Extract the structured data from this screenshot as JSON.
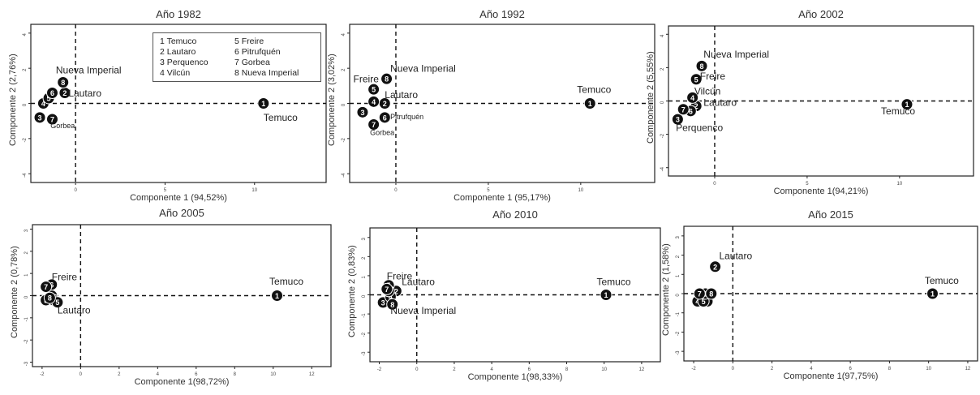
{
  "chart_data": [
    {
      "type": "scatter",
      "title": "Año 1982",
      "xlabel": "Componente 1 (94,52%)",
      "ylabel": "Componente 2 (2,76%)",
      "xlim": [
        -2.5,
        14
      ],
      "ylim": [
        -4.5,
        4.5
      ],
      "xticks": [
        0,
        5,
        10
      ],
      "yticks": [
        -4,
        -2,
        0,
        2,
        4
      ],
      "points": [
        {
          "id": "1",
          "x": 10.5,
          "y": 0.0
        },
        {
          "id": "2",
          "x": -0.6,
          "y": 0.6
        },
        {
          "id": "3",
          "x": -2.0,
          "y": -0.8
        },
        {
          "id": "4",
          "x": -1.8,
          "y": 0.0
        },
        {
          "id": "5",
          "x": -1.5,
          "y": 0.3
        },
        {
          "id": "6",
          "x": -1.3,
          "y": 0.6
        },
        {
          "id": "7",
          "x": -1.3,
          "y": -0.9
        },
        {
          "id": "8",
          "x": -0.7,
          "y": 1.2
        }
      ],
      "labels": [
        {
          "text": "Nueva Imperial",
          "x": -1.1,
          "y": 1.7
        },
        {
          "text": "Lautaro",
          "x": -0.4,
          "y": 0.4
        },
        {
          "text": "Temuco",
          "x": 10.5,
          "y": -1.0
        },
        {
          "text": "Gorbea",
          "x": -1.4,
          "y": -1.4
        }
      ],
      "legend": [
        "1 Temuco",
        "5 Freire",
        "2 Lautaro",
        "6 Pitrufquén",
        "3 Perquenco",
        "7 Gorbea",
        "4 Vilcún",
        "8 Nueva Imperial"
      ]
    },
    {
      "type": "scatter",
      "title": "Año 1992",
      "xlabel": "Componente 1 (95,17%)",
      "ylabel": "Componente 2 (3,02%)",
      "xlim": [
        -2.5,
        14
      ],
      "ylim": [
        -4.5,
        4.5
      ],
      "xticks": [
        0,
        5,
        10
      ],
      "yticks": [
        -4,
        -2,
        0,
        2,
        4
      ],
      "points": [
        {
          "id": "1",
          "x": 10.5,
          "y": 0.0
        },
        {
          "id": "2",
          "x": -0.6,
          "y": 0.0
        },
        {
          "id": "3",
          "x": -1.8,
          "y": -0.5
        },
        {
          "id": "4",
          "x": -1.2,
          "y": 0.1
        },
        {
          "id": "5",
          "x": -1.2,
          "y": 0.8
        },
        {
          "id": "6",
          "x": -0.6,
          "y": -0.8
        },
        {
          "id": "7",
          "x": -1.2,
          "y": -1.2
        },
        {
          "id": "8",
          "x": -0.5,
          "y": 1.4
        }
      ],
      "labels": [
        {
          "text": "Nueva Imperial",
          "x": -0.3,
          "y": 1.8
        },
        {
          "text": "Freire",
          "x": -2.3,
          "y": 1.2
        },
        {
          "text": "Lautaro",
          "x": -0.6,
          "y": 0.3
        },
        {
          "text": "Temuco",
          "x": 9.8,
          "y": 0.6
        },
        {
          "text": "Pitrufquén",
          "x": -0.3,
          "y": -0.9
        },
        {
          "text": "Gorbea",
          "x": -1.4,
          "y": -1.8
        }
      ]
    },
    {
      "type": "scatter",
      "title": "Año 2002",
      "xlabel": "Componente 1(94,21%)",
      "ylabel": "Componente 2 (5,55%)",
      "xlim": [
        -2.5,
        14
      ],
      "ylim": [
        -4.5,
        4.5
      ],
      "xticks": [
        0,
        5,
        10
      ],
      "yticks": [
        -4,
        -2,
        0,
        2,
        4
      ],
      "points": [
        {
          "id": "1",
          "x": 10.4,
          "y": -0.2
        },
        {
          "id": "2",
          "x": -1.0,
          "y": -0.3
        },
        {
          "id": "3",
          "x": -2.0,
          "y": -1.1
        },
        {
          "id": "4",
          "x": -1.2,
          "y": 0.2
        },
        {
          "id": "5",
          "x": -1.0,
          "y": 1.3
        },
        {
          "id": "6",
          "x": -1.3,
          "y": -0.6
        },
        {
          "id": "7",
          "x": -1.7,
          "y": -0.5
        },
        {
          "id": "8",
          "x": -0.7,
          "y": 2.1
        }
      ],
      "labels": [
        {
          "text": "Nueva Imperial",
          "x": -0.6,
          "y": 2.6
        },
        {
          "text": "Freire",
          "x": -0.8,
          "y": 1.3
        },
        {
          "text": "Vilcún",
          "x": -1.1,
          "y": 0.4
        },
        {
          "text": "Lautaro",
          "x": -0.6,
          "y": -0.3
        },
        {
          "text": "Temuco",
          "x": 9.0,
          "y": -0.8
        },
        {
          "text": "Perquenco",
          "x": -2.1,
          "y": -1.8
        }
      ]
    },
    {
      "type": "scatter",
      "title": "Año 2005",
      "xlabel": "Componente 1(98,72%)",
      "ylabel": "Componente 2 (0,78%)",
      "xlim": [
        -2.5,
        13
      ],
      "ylim": [
        -3.2,
        3.2
      ],
      "xticks": [
        -2,
        0,
        2,
        4,
        6,
        8,
        10,
        12
      ],
      "yticks": [
        -3,
        -2,
        -1,
        0,
        1,
        2,
        3
      ],
      "points": [
        {
          "id": "1",
          "x": 10.2,
          "y": 0.0
        },
        {
          "id": "2",
          "x": -1.5,
          "y": 0.0
        },
        {
          "id": "3",
          "x": -1.8,
          "y": -0.2
        },
        {
          "id": "4",
          "x": -1.4,
          "y": -0.2
        },
        {
          "id": "5",
          "x": -1.2,
          "y": -0.3
        },
        {
          "id": "6",
          "x": -1.5,
          "y": 0.5
        },
        {
          "id": "7",
          "x": -1.8,
          "y": 0.4
        },
        {
          "id": "8",
          "x": -1.6,
          "y": -0.1
        }
      ],
      "labels": [
        {
          "text": "Freire",
          "x": -1.5,
          "y": 0.7
        },
        {
          "text": "Temuco",
          "x": 9.8,
          "y": 0.5
        },
        {
          "text": "Lautaro",
          "x": -1.2,
          "y": -0.8
        }
      ]
    },
    {
      "type": "scatter",
      "title": "Año 2010",
      "xlabel": "Componente 1(98,33%)",
      "ylabel": "Componente 2 (0,83%)",
      "xlim": [
        -2.5,
        13
      ],
      "ylim": [
        -3.5,
        3.5
      ],
      "xticks": [
        -2,
        0,
        2,
        4,
        6,
        8,
        10,
        12
      ],
      "yticks": [
        -3,
        -2,
        -1,
        0,
        1,
        2,
        3
      ],
      "points": [
        {
          "id": "1",
          "x": 10.1,
          "y": 0.0
        },
        {
          "id": "2",
          "x": -1.1,
          "y": 0.2
        },
        {
          "id": "3",
          "x": -1.8,
          "y": -0.4
        },
        {
          "id": "4",
          "x": -1.4,
          "y": -0.1
        },
        {
          "id": "5",
          "x": -1.5,
          "y": 0.5
        },
        {
          "id": "6",
          "x": -1.5,
          "y": 0.2
        },
        {
          "id": "7",
          "x": -1.6,
          "y": 0.3
        },
        {
          "id": "8",
          "x": -1.3,
          "y": -0.5
        }
      ],
      "labels": [
        {
          "text": "Freire",
          "x": -1.6,
          "y": 0.8
        },
        {
          "text": "Lautaro",
          "x": -0.8,
          "y": 0.5
        },
        {
          "text": "Temuco",
          "x": 9.6,
          "y": 0.5
        },
        {
          "text": "Nueva Imperial",
          "x": -1.4,
          "y": -1.0
        }
      ]
    },
    {
      "type": "scatter",
      "title": "Año 2015",
      "xlabel": "Componente 1(97,75%)",
      "ylabel": "Componente 2 (1,58%)",
      "xlim": [
        -2.5,
        12.5
      ],
      "ylim": [
        -3.5,
        3.5
      ],
      "xticks": [
        -2,
        0,
        2,
        4,
        6,
        8,
        10,
        12
      ],
      "yticks": [
        -3,
        -2,
        -1,
        0,
        1,
        2,
        3
      ],
      "points": [
        {
          "id": "1",
          "x": 10.2,
          "y": 0.0
        },
        {
          "id": "2",
          "x": -0.9,
          "y": 1.4
        },
        {
          "id": "3",
          "x": -1.3,
          "y": -0.4
        },
        {
          "id": "4",
          "x": -1.8,
          "y": -0.4
        },
        {
          "id": "5",
          "x": -1.5,
          "y": -0.4
        },
        {
          "id": "6",
          "x": -1.4,
          "y": 0.0
        },
        {
          "id": "7",
          "x": -1.7,
          "y": 0.0
        },
        {
          "id": "8",
          "x": -1.1,
          "y": 0.0
        }
      ],
      "labels": [
        {
          "text": "Lautaro",
          "x": -0.7,
          "y": 1.8
        },
        {
          "text": "Temuco",
          "x": 9.8,
          "y": 0.5
        }
      ]
    }
  ]
}
